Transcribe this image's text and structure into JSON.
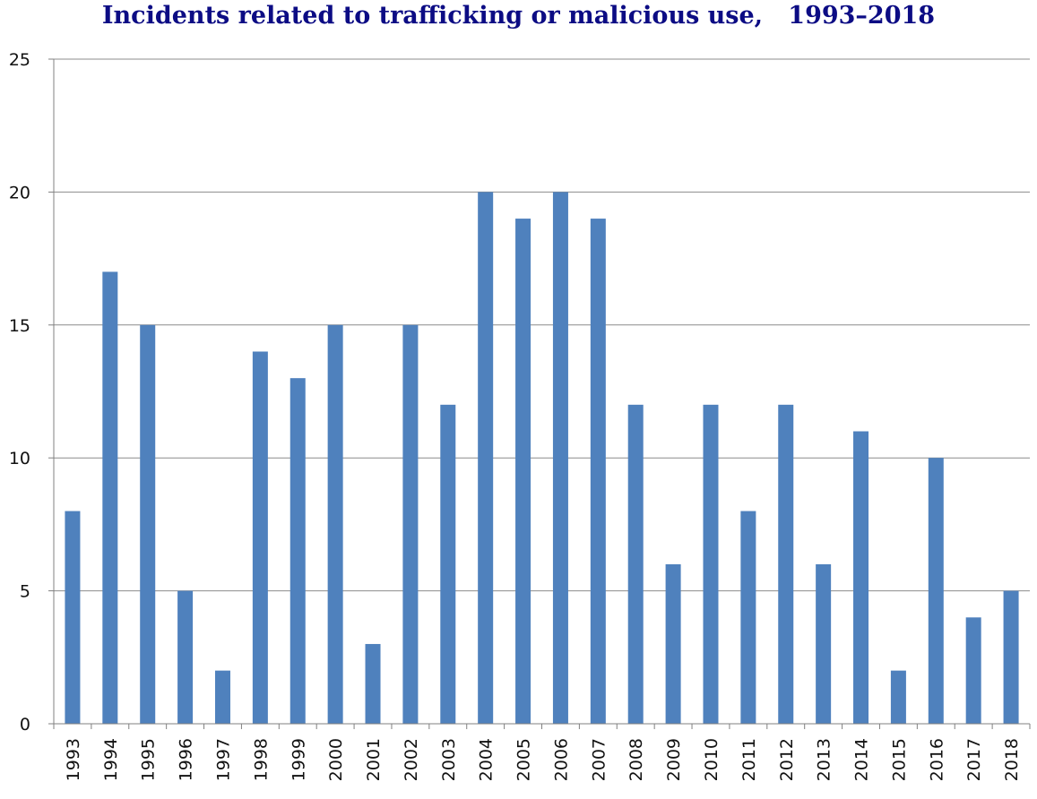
{
  "chart_data": {
    "type": "bar",
    "title": "Incidents related to trafficking or malicious use,   1993–2018",
    "xlabel": "",
    "ylabel": "",
    "categories": [
      "1993",
      "1994",
      "1995",
      "1996",
      "1997",
      "1998",
      "1999",
      "2000",
      "2001",
      "2002",
      "2003",
      "2004",
      "2005",
      "2006",
      "2007",
      "2008",
      "2009",
      "2010",
      "2011",
      "2012",
      "2013",
      "2014",
      "2015",
      "2016",
      "2017",
      "2018"
    ],
    "values": [
      8,
      17,
      15,
      5,
      2,
      14,
      13,
      15,
      3,
      15,
      12,
      20,
      19,
      20,
      19,
      12,
      6,
      12,
      8,
      12,
      6,
      11,
      2,
      10,
      4,
      5
    ],
    "ylim": [
      0,
      25
    ],
    "yticks": [
      "0",
      "5",
      "10",
      "15",
      "20",
      "25"
    ],
    "grid": true,
    "colors": {
      "bar": "#4f81bd",
      "title": "#0c0c84",
      "grid": "#8c8c8c",
      "axis": "#808080"
    }
  }
}
